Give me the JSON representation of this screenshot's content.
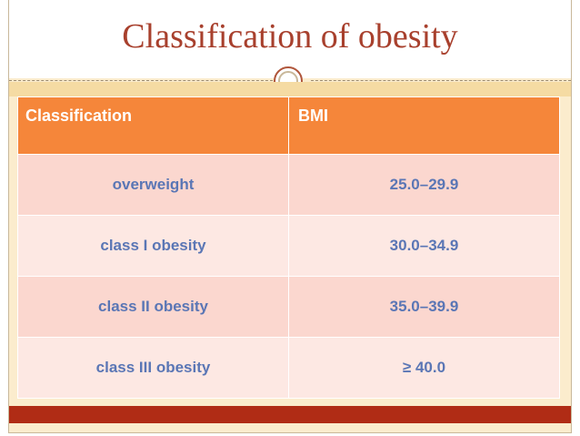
{
  "title": "Classification of obesity",
  "table": {
    "headers": [
      "Classification",
      "BMI"
    ],
    "rows": [
      {
        "classification": "overweight",
        "bmi": "25.0–29.9"
      },
      {
        "classification": "class I obesity",
        "bmi": "30.0–34.9"
      },
      {
        "classification": "class II obesity",
        "bmi": "35.0–39.9"
      },
      {
        "classification": "class III obesity",
        "bmi": "≥ 40.0"
      }
    ]
  },
  "colors": {
    "title": "#a8402d",
    "header_bg": "#f5863a",
    "row_odd_bg": "#fbd7cf",
    "row_even_bg": "#fde8e3",
    "cell_text": "#5a76b5",
    "bottom_band": "#b02c15"
  }
}
